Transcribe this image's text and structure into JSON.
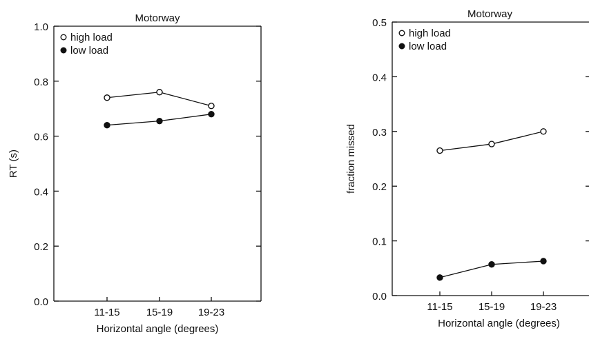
{
  "chart_data": [
    {
      "type": "line",
      "title": "Motorway",
      "xlabel": "Horizontal angle (degrees)",
      "ylabel": "RT (s)",
      "categories": [
        "11-15",
        "15-19",
        "19-23"
      ],
      "ylim": [
        0,
        1.0
      ],
      "yticks": [
        0.0,
        0.2,
        0.4,
        0.6,
        0.8,
        1.0
      ],
      "ytick_labels": [
        "0.0",
        "0.2",
        "0.4",
        "0.6",
        "0.8",
        "1.0"
      ],
      "legend_position": "top-left",
      "grid": false,
      "series": [
        {
          "name": "high load",
          "marker": "open-circle",
          "values": [
            0.74,
            0.76,
            0.71
          ]
        },
        {
          "name": "low load",
          "marker": "filled-circle",
          "values": [
            0.64,
            0.655,
            0.68
          ]
        }
      ]
    },
    {
      "type": "line",
      "title": "Motorway",
      "xlabel": "Horizontal angle (degrees)",
      "ylabel": "fraction missed",
      "categories": [
        "11-15",
        "15-19",
        "19-23"
      ],
      "ylim": [
        0,
        0.5
      ],
      "yticks": [
        0.0,
        0.1,
        0.2,
        0.3,
        0.4,
        0.5
      ],
      "ytick_labels": [
        "0.0",
        "0.1",
        "0.2",
        "0.3",
        "0.4",
        "0.5"
      ],
      "legend_position": "top-left",
      "grid": false,
      "series": [
        {
          "name": "high load",
          "marker": "open-circle",
          "values": [
            0.265,
            0.277,
            0.3
          ]
        },
        {
          "name": "low load",
          "marker": "filled-circle",
          "values": [
            0.033,
            0.057,
            0.063
          ]
        }
      ]
    }
  ]
}
